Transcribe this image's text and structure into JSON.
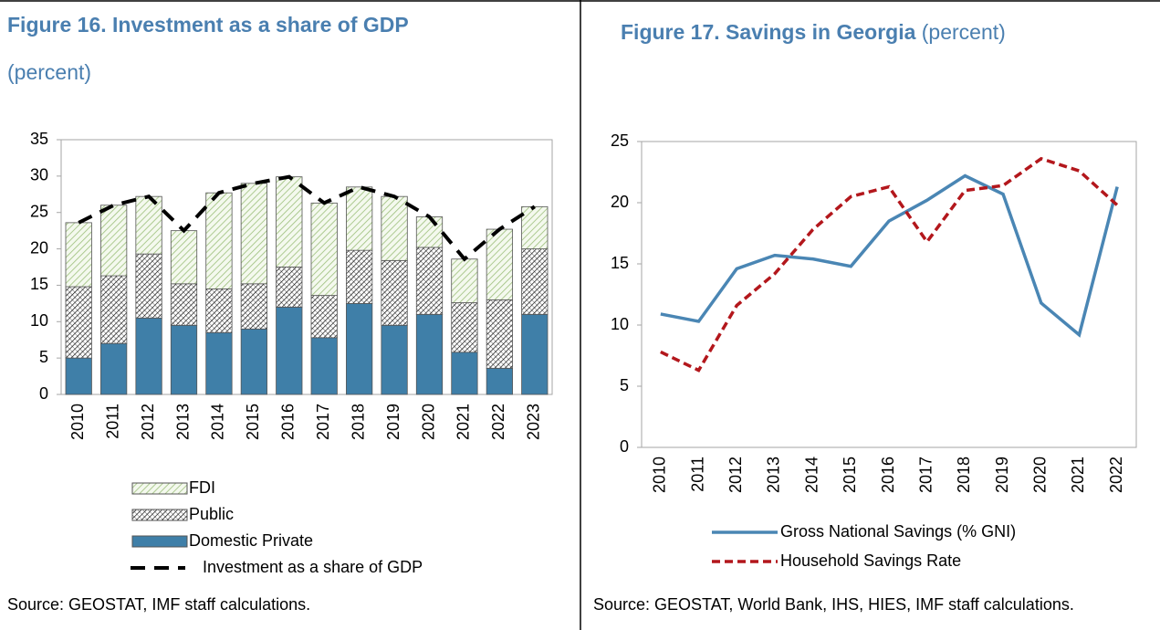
{
  "chart_data": [
    {
      "type": "bar",
      "stacked": true,
      "title": "Figure 16. Investment as a share of GDP",
      "subtitle": "(percent)",
      "source": "Source: GEOSTAT, IMF staff calculations.",
      "categories": [
        "2010",
        "2011",
        "2012",
        "2013",
        "2014",
        "2015",
        "2016",
        "2017",
        "2018",
        "2019",
        "2020",
        "2021",
        "2022",
        "2023"
      ],
      "series": [
        {
          "name": "Domestic Private",
          "color": "#3f7fa8",
          "pattern": "solid",
          "values": [
            5,
            7,
            10.5,
            9.5,
            8.5,
            9,
            12,
            7.8,
            12.5,
            9.5,
            11,
            5.8,
            3.6,
            11
          ]
        },
        {
          "name": "Public",
          "color": "#000000",
          "pattern": "crosshatch",
          "values": [
            9.8,
            9.3,
            8.8,
            5.7,
            6,
            6.2,
            5.5,
            5.8,
            7.3,
            8.9,
            9.2,
            6.8,
            9.4,
            9
          ]
        },
        {
          "name": "FDI",
          "color": "#9cbf7a",
          "pattern": "diagonal",
          "values": [
            8.8,
            9.7,
            7.9,
            7.3,
            13.2,
            13.8,
            12.4,
            12.7,
            8.7,
            8.8,
            4.2,
            6,
            9.7,
            5.8
          ]
        },
        {
          "name": "Investment as a share of GDP",
          "type": "line",
          "color": "#000000",
          "dashed": true,
          "values": [
            23.6,
            26,
            27.2,
            22.5,
            27.7,
            29,
            29.9,
            26.3,
            28.5,
            27.2,
            24.4,
            18.6,
            22.7,
            25.8
          ]
        }
      ],
      "ylim": [
        0,
        35
      ],
      "yticks": [
        0,
        5,
        10,
        15,
        20,
        25,
        30,
        35
      ],
      "grid": false
    },
    {
      "type": "line",
      "title": "Figure 17. Savings in Georgia",
      "subtitle": "(percent)",
      "source": "Source: GEOSTAT, World Bank, IHS, HIES, IMF staff calculations.",
      "categories": [
        "2010",
        "2011",
        "2012",
        "2013",
        "2014",
        "2015",
        "2016",
        "2017",
        "2018",
        "2019",
        "2020",
        "2021",
        "2022"
      ],
      "series": [
        {
          "name": "Gross National Savings (% GNI)",
          "color": "#4a86b4",
          "dashed": false,
          "values": [
            10.9,
            10.3,
            14.6,
            15.7,
            15.4,
            14.8,
            18.5,
            20.2,
            22.2,
            20.7,
            11.8,
            9.2,
            21.3
          ]
        },
        {
          "name": "Household Savings Rate",
          "color": "#b3171c",
          "dashed": true,
          "values": [
            7.8,
            6.3,
            11.6,
            14.2,
            17.8,
            20.5,
            21.3,
            16.8,
            21,
            21.4,
            23.6,
            22.6,
            19.8
          ]
        }
      ],
      "ylim": [
        0,
        25
      ],
      "yticks": [
        0,
        5,
        10,
        15,
        20,
        25
      ],
      "grid": false
    }
  ]
}
